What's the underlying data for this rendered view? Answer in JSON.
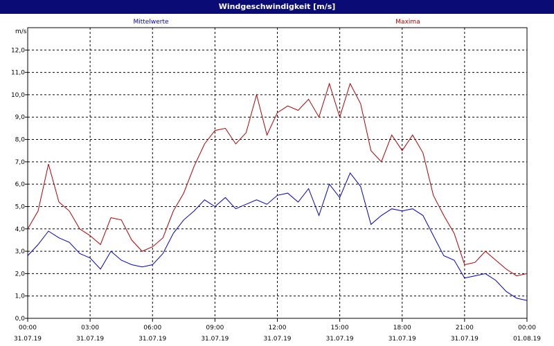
{
  "window": {
    "title": "Windgeschwindigkeit [m/s]"
  },
  "chart_data": {
    "type": "line",
    "title": "Windgeschwindigkeit [m/s]",
    "ylabel": "m/s",
    "xlabel": "",
    "ylim": [
      0,
      13
    ],
    "y_ticks": [
      "0,0",
      "1,0",
      "2,0",
      "3,0",
      "4,0",
      "5,0",
      "6,0",
      "7,0",
      "8,0",
      "9,0",
      "10,0",
      "11,0",
      "12,0"
    ],
    "x_ticks": [
      {
        "time": "00:00",
        "date": "31.07.19"
      },
      {
        "time": "03:00",
        "date": "31.07.19"
      },
      {
        "time": "06:00",
        "date": "31.07.19"
      },
      {
        "time": "09:00",
        "date": "31.07.19"
      },
      {
        "time": "12:00",
        "date": "31.07.19"
      },
      {
        "time": "15:00",
        "date": "31.07.19"
      },
      {
        "time": "18:00",
        "date": "31.07.19"
      },
      {
        "time": "21:00",
        "date": "31.07.19"
      },
      {
        "time": "00:00",
        "date": "01.08.19"
      }
    ],
    "grid": true,
    "legend_position": "top",
    "x_unit": "hours since 00:00",
    "series": [
      {
        "name": "Mittelwerte",
        "color": "#0000c8",
        "x": [
          0,
          0.5,
          1,
          1.5,
          2,
          2.5,
          3,
          3.5,
          4,
          4.5,
          5,
          5.5,
          6,
          6.5,
          7,
          7.5,
          8,
          8.5,
          9,
          9.5,
          10,
          10.5,
          11,
          11.5,
          12,
          12.5,
          13,
          13.5,
          14,
          14.5,
          15,
          15.5,
          16,
          16.5,
          17,
          17.5,
          18,
          18.5,
          19,
          19.5,
          20,
          20.5,
          21,
          21.5,
          22,
          22.5,
          23,
          23.5,
          24
        ],
        "y": [
          2.8,
          3.3,
          3.9,
          3.6,
          3.4,
          2.9,
          2.7,
          2.2,
          3.0,
          2.6,
          2.4,
          2.3,
          2.4,
          2.9,
          3.8,
          4.4,
          4.8,
          5.3,
          5.0,
          5.4,
          4.9,
          5.1,
          5.3,
          5.1,
          5.5,
          5.6,
          5.2,
          5.8,
          4.6,
          6.0,
          5.4,
          6.5,
          5.9,
          4.2,
          4.6,
          4.9,
          4.8,
          4.9,
          4.6,
          3.7,
          2.8,
          2.6,
          1.8,
          1.9,
          2.0,
          1.7,
          1.2,
          0.9,
          0.8
        ]
      },
      {
        "name": "Maxima",
        "color": "#b00000",
        "x": [
          0,
          0.5,
          1,
          1.5,
          2,
          2.5,
          3,
          3.5,
          4,
          4.5,
          5,
          5.5,
          6,
          6.5,
          7,
          7.5,
          8,
          8.5,
          9,
          9.5,
          10,
          10.5,
          11,
          11.5,
          12,
          12.5,
          13,
          13.5,
          14,
          14.5,
          15,
          15.5,
          16,
          16.5,
          17,
          17.5,
          18,
          18.5,
          19,
          19.5,
          20,
          20.5,
          21,
          21.5,
          22,
          22.5,
          23,
          23.5,
          24
        ],
        "y": [
          4.0,
          4.8,
          6.9,
          5.2,
          4.8,
          4.0,
          3.7,
          3.3,
          4.5,
          4.4,
          3.5,
          3.0,
          3.2,
          3.6,
          4.8,
          5.6,
          6.8,
          7.8,
          8.4,
          8.5,
          7.8,
          8.3,
          10.0,
          8.2,
          9.2,
          9.5,
          9.3,
          9.8,
          9.0,
          10.5,
          9.0,
          10.5,
          9.6,
          7.5,
          7.0,
          8.2,
          7.5,
          8.2,
          7.4,
          5.5,
          4.6,
          3.8,
          2.4,
          2.5,
          3.0,
          2.6,
          2.2,
          1.9,
          2.0
        ]
      }
    ]
  }
}
